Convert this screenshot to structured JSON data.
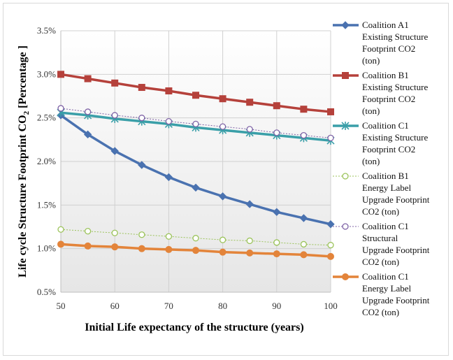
{
  "chart_data": {
    "type": "line",
    "title": "",
    "xlabel": "Initial Life expectancy of the structure (years)",
    "ylabel": "Life cycle Structure Footprint CO",
    "ylabel_sub": "2",
    "ylabel_suffix": " [Percentage ]",
    "x": [
      50,
      55,
      60,
      65,
      70,
      75,
      80,
      85,
      90,
      95,
      100
    ],
    "xticks": [
      "50",
      "60",
      "70",
      "80",
      "90",
      "100"
    ],
    "xtick_values": [
      50,
      60,
      70,
      80,
      90,
      100
    ],
    "xlim": [
      50,
      100
    ],
    "yticks": [
      "0.5%",
      "1.0%",
      "1.5%",
      "2.0%",
      "2.5%",
      "3.0%",
      "3.5%"
    ],
    "ytick_values": [
      0.5,
      1.0,
      1.5,
      2.0,
      2.5,
      3.0,
      3.5
    ],
    "ylim": [
      0.5,
      3.5
    ],
    "grid": true,
    "legend_position": "right",
    "series": [
      {
        "name": "Coalition A1 Existing Structure Footprint CO2 (ton)",
        "legend_lines": [
          "Coalition A1",
          "Existing Structure",
          "Footprint CO2",
          "(ton)"
        ],
        "color": "#4a72b0",
        "marker": "diamond",
        "line_width": 3.5,
        "dashed": false,
        "values": [
          2.53,
          2.31,
          2.12,
          1.96,
          1.82,
          1.7,
          1.6,
          1.51,
          1.42,
          1.35,
          1.28
        ]
      },
      {
        "name": "Coalition B1 Existing Structure Footprint CO2 (ton)",
        "legend_lines": [
          "Coalition B1",
          "Existing Structure",
          "Footprint CO2",
          "(ton)"
        ],
        "color": "#b5413b",
        "marker": "square",
        "line_width": 3.5,
        "dashed": false,
        "values": [
          3.0,
          2.95,
          2.9,
          2.85,
          2.81,
          2.76,
          2.72,
          2.68,
          2.64,
          2.6,
          2.57
        ]
      },
      {
        "name": "Coalition C1 Existing Structure Footprint CO2 (ton)",
        "legend_lines": [
          "Coalition C1",
          "Existing Structure",
          "Footprint CO2",
          "(ton)"
        ],
        "color": "#3a9fa8",
        "marker": "asterisk",
        "line_width": 3.5,
        "dashed": false,
        "values": [
          2.56,
          2.53,
          2.49,
          2.46,
          2.43,
          2.39,
          2.36,
          2.33,
          2.3,
          2.27,
          2.24
        ]
      },
      {
        "name": "Coalition B1 Energy Label Upgrade Footprint CO2 (ton)",
        "legend_lines": [
          "Coalition B1",
          "Energy Label",
          "Upgrade Footprint",
          "CO2 (ton)"
        ],
        "color": "#9bc35a",
        "marker": "circle-open",
        "line_width": 1,
        "dashed": true,
        "values": [
          1.22,
          1.2,
          1.18,
          1.16,
          1.14,
          1.12,
          1.1,
          1.09,
          1.07,
          1.05,
          1.04
        ]
      },
      {
        "name": "Coalition C1 Structural Upgrade Footprint CO2 (ton)",
        "legend_lines": [
          "Coalition C1",
          "Structural",
          "Upgrade Footprint",
          "CO2 (ton)"
        ],
        "color": "#7f63a6",
        "marker": "circle-open",
        "line_width": 1,
        "dashed": true,
        "values": [
          2.61,
          2.57,
          2.53,
          2.5,
          2.46,
          2.43,
          2.4,
          2.37,
          2.33,
          2.3,
          2.27
        ]
      },
      {
        "name": "Coalition C1 Energy Label Upgrade Footprint CO2 (ton)",
        "legend_lines": [
          "Coalition C1",
          "Energy Label",
          "Upgrade Footprint",
          "CO2 (ton)"
        ],
        "color": "#e3843a",
        "marker": "circle",
        "line_width": 3.5,
        "dashed": false,
        "values": [
          1.05,
          1.03,
          1.02,
          1.0,
          0.99,
          0.98,
          0.96,
          0.95,
          0.94,
          0.93,
          0.91
        ]
      }
    ]
  }
}
